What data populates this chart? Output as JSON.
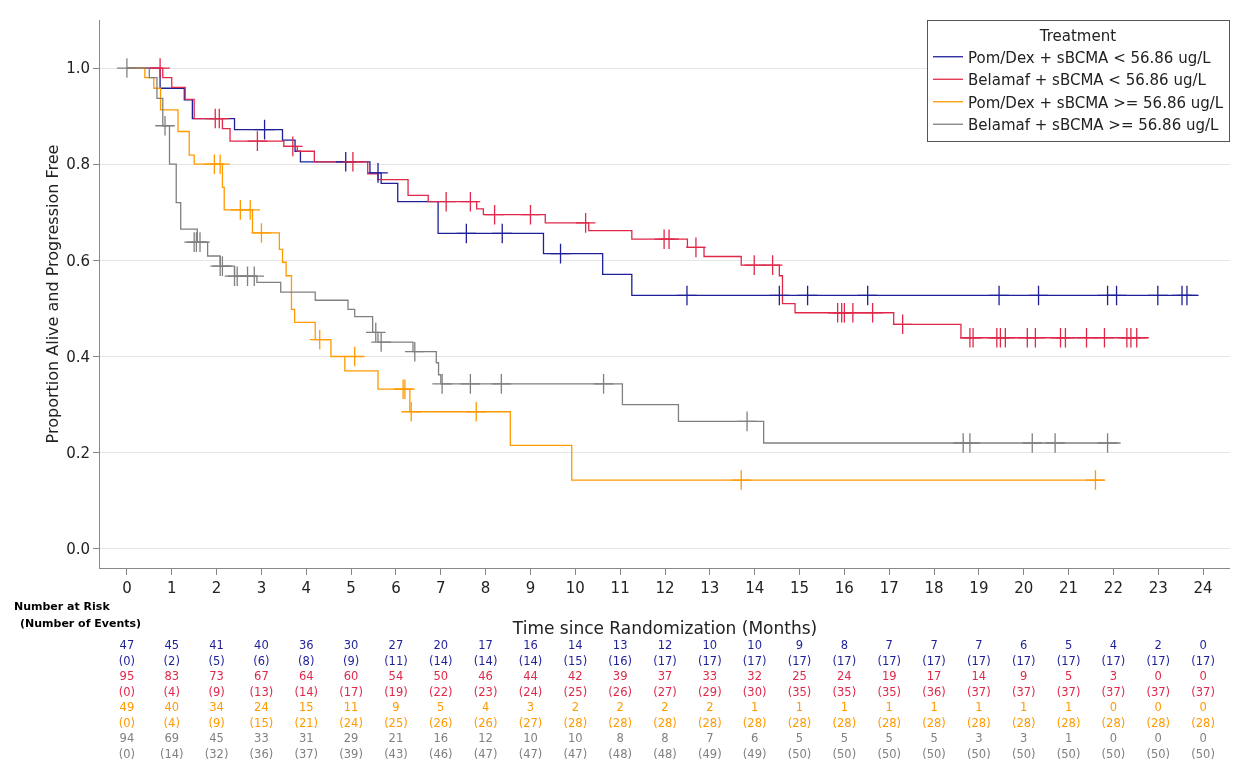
{
  "chart_data": {
    "type": "step",
    "xlabel": "Time since Randomization (Months)",
    "ylabel": "Proportion Alive and Progression Free",
    "legend_title": "Treatment",
    "legend": "top right",
    "grid": "y",
    "line_style": "solid",
    "xlim": [
      -0.6,
      24.6
    ],
    "xticks": [
      0,
      1,
      2,
      3,
      4,
      5,
      6,
      7,
      8,
      9,
      10,
      11,
      12,
      13,
      14,
      15,
      16,
      17,
      18,
      19,
      20,
      21,
      22,
      23,
      24
    ],
    "ylim": [
      -0.04,
      1.1
    ],
    "yticks": [
      {
        "value": 0,
        "label": "0.0"
      },
      {
        "value": 0.2,
        "label": "0.2"
      },
      {
        "value": 0.4,
        "label": "0.4"
      },
      {
        "value": 0.6,
        "label": "0.6"
      },
      {
        "value": 0.8,
        "label": "0.8"
      },
      {
        "value": 1,
        "label": "1.0"
      }
    ],
    "series": [
      {
        "name": "Pom/Dex + sBCMA < 56.86 ug/L",
        "color": "#1f1f9a",
        "x": [
          0,
          0.74,
          1.28,
          1.46,
          2.4,
          3.47,
          3.75,
          3.87,
          5.42,
          5.67,
          6.04,
          6.94,
          9.29,
          10.61,
          11.26,
          23.9
        ],
        "values": [
          1,
          0.958,
          0.934,
          0.895,
          0.872,
          0.85,
          0.827,
          0.805,
          0.782,
          0.76,
          0.722,
          0.656,
          0.614,
          0.571,
          0.527,
          0.527
        ]
      },
      {
        "name": "Belamaf + sBCMA < 56.86 ug/L",
        "color": "#e0294a",
        "x": [
          0,
          0.8,
          1.0,
          1.3,
          1.5,
          2.13,
          2.3,
          3.5,
          3.8,
          4.18,
          5.37,
          5.6,
          6.27,
          6.72,
          7.8,
          7.95,
          9.33,
          10.3,
          11.26,
          12.5,
          12.87,
          13.7,
          14.55,
          14.62,
          14.9,
          17.1,
          18.6,
          22.79
        ],
        "values": [
          1,
          0.98,
          0.96,
          0.935,
          0.895,
          0.874,
          0.848,
          0.837,
          0.827,
          0.805,
          0.78,
          0.768,
          0.735,
          0.722,
          0.707,
          0.695,
          0.678,
          0.662,
          0.644,
          0.627,
          0.608,
          0.59,
          0.568,
          0.51,
          0.491,
          0.467,
          0.439,
          0.439
        ]
      },
      {
        "name": "Pom/Dex + sBCMA >= 56.86 ug/L",
        "color": "#ff9a00",
        "x": [
          0,
          0.4,
          0.6,
          0.75,
          1.14,
          1.39,
          1.5,
          2.13,
          2.17,
          2.8,
          3.4,
          3.47,
          3.55,
          3.67,
          3.74,
          4.2,
          4.55,
          4.86,
          5.6,
          6.31,
          8.55,
          9.92,
          21.8
        ],
        "values": [
          1,
          0.98,
          0.958,
          0.913,
          0.868,
          0.819,
          0.8,
          0.752,
          0.705,
          0.657,
          0.623,
          0.596,
          0.568,
          0.498,
          0.471,
          0.435,
          0.4,
          0.37,
          0.332,
          0.285,
          0.215,
          0.143,
          0.143
        ]
      },
      {
        "name": "Belamaf + sBCMA >= 56.86 ug/L",
        "color": "#808080",
        "x": [
          0,
          0.5,
          0.67,
          0.8,
          0.95,
          1.1,
          1.2,
          1.57,
          1.8,
          2.08,
          2.4,
          2.9,
          3.43,
          4.2,
          4.93,
          5.08,
          5.48,
          5.6,
          6.38,
          6.9,
          6.95,
          7.0,
          11.05,
          12.3,
          14.2,
          22.16
        ],
        "values": [
          1,
          0.98,
          0.937,
          0.88,
          0.8,
          0.72,
          0.665,
          0.638,
          0.609,
          0.588,
          0.567,
          0.554,
          0.534,
          0.517,
          0.498,
          0.483,
          0.45,
          0.43,
          0.41,
          0.387,
          0.362,
          0.343,
          0.3,
          0.265,
          0.22,
          0.22
        ]
      },
      {
        "type": "scatter",
        "marker": "cross",
        "color": "#1f1f9a",
        "x": [
          3.07,
          4.88,
          5.6,
          7.57,
          8.37,
          9.67,
          12.49,
          14.55,
          15.18,
          16.52,
          19.45,
          20.33,
          21.87,
          22.07,
          22.99,
          23.53,
          23.64
        ],
        "values": [
          0.872,
          0.805,
          0.782,
          0.656,
          0.656,
          0.614,
          0.527,
          0.527,
          0.527,
          0.527,
          0.527,
          0.527,
          0.527,
          0.527,
          0.527,
          0.527,
          0.527
        ]
      },
      {
        "type": "scatter",
        "marker": "cross",
        "color": "#e0294a",
        "x": [
          0.74,
          1.97,
          2.06,
          2.91,
          3.7,
          5.04,
          7.12,
          7.66,
          8.2,
          9.0,
          10.23,
          11.98,
          12.09,
          12.69,
          13.99,
          14.4,
          15.85,
          15.94,
          16.0,
          16.19,
          16.63,
          17.3,
          18.8,
          18.87,
          19.4,
          19.48,
          19.59,
          20.08,
          20.26,
          20.82,
          20.93,
          21.4,
          21.8,
          22.3,
          22.39,
          22.52
        ],
        "values": [
          1,
          0.895,
          0.895,
          0.848,
          0.837,
          0.805,
          0.722,
          0.722,
          0.695,
          0.695,
          0.678,
          0.644,
          0.644,
          0.627,
          0.59,
          0.59,
          0.491,
          0.491,
          0.491,
          0.491,
          0.491,
          0.467,
          0.439,
          0.439,
          0.439,
          0.439,
          0.439,
          0.439,
          0.439,
          0.439,
          0.439,
          0.439,
          0.439,
          0.439,
          0.439,
          0.439
        ]
      },
      {
        "type": "scatter",
        "marker": "cross",
        "color": "#ff9a00",
        "x": [
          1.95,
          2.08,
          2.53,
          2.75,
          3.0,
          4.3,
          5.08,
          6.16,
          6.2,
          6.34,
          7.79,
          13.7,
          21.6
        ],
        "values": [
          0.8,
          0.8,
          0.705,
          0.705,
          0.657,
          0.435,
          0.4,
          0.332,
          0.332,
          0.285,
          0.285,
          0.143,
          0.143
        ]
      },
      {
        "type": "scatter",
        "marker": "cross",
        "color": "#808080",
        "x": [
          0,
          0.85,
          1.5,
          1.55,
          1.63,
          2.08,
          2.13,
          2.4,
          2.46,
          2.69,
          2.84,
          5.55,
          5.67,
          6.42,
          7.03,
          7.66,
          8.35,
          10.63,
          13.83,
          18.65,
          18.8,
          20.19,
          20.7,
          21.87
        ],
        "values": [
          1,
          0.88,
          0.638,
          0.638,
          0.638,
          0.588,
          0.588,
          0.567,
          0.567,
          0.567,
          0.567,
          0.45,
          0.43,
          0.41,
          0.343,
          0.343,
          0.343,
          0.343,
          0.265,
          0.22,
          0.22,
          0.22,
          0.22,
          0.22
        ]
      }
    ],
    "annotations": [
      "Number at Risk",
      "(Number of Events)",
      "47 45 41 40 36 30 27 20 17 16 14 13 12 10 10 9 8 7 7 7 6 5 4 2 0",
      "(0) (2) (5) (6) (8) (9) (11) (14) (14) (14) (15) (16) (17) (17) (17) (17) (17) (17) (17) (17) (17) (17) (17) (17) (17)",
      "95 83 73 67 64 60 54 50 46 44 42 39 37 33 32 25 24 19 17 14 9 5 3 0 0",
      "(0) (4) (9) (13) (14) (17) (19) (22) (23) (24) (25) (26) (27) (29) (30) (35) (35) (35) (36) (37) (37) (37) (37) (37) (37)",
      "49 40 34 24 15 11 9 5 4 3 2 2 2 2 1 1 1 1 1 1 1 1 0 0 0",
      "(0) (4) (9) (15) (21) (24) (25) (26) (26) (27) (28) (28) (28) (28) (28) (28) (28) (28) (28) (28) (28) (28) (28) (28) (28)",
      "94 69 45 33 31 29 21 16 12 10 10 8 8 7 6 5 5 5 5 3 3 1 0 0 0",
      "(0) (14) (32) (36) (37) (39) (43) (46) (47) (47) (47) (48) (48) (49) (49) (50) (50) (50) (50) (50) (50) (50) (50) (50) (50)"
    ]
  }
}
